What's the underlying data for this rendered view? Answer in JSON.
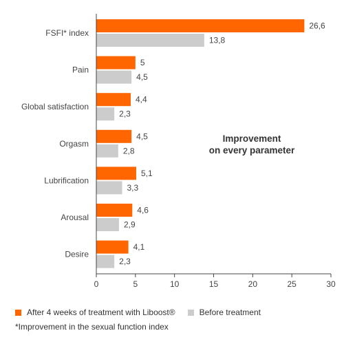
{
  "chart_data": {
    "type": "bar",
    "orientation": "horizontal",
    "categories": [
      "FSFI* index",
      "Pain",
      "Global satisfaction",
      "Orgasm",
      "Lubrification",
      "Arousal",
      "Desire"
    ],
    "series": [
      {
        "name": "After 4 weeks of treatment with Liboost®",
        "values": [
          26.6,
          5,
          4.4,
          4.5,
          5.1,
          4.6,
          4.1
        ],
        "value_labels": [
          "26,6",
          "5",
          "4,4",
          "4,5",
          "5,1",
          "4,6",
          "4,1"
        ],
        "color": "#ff6600"
      },
      {
        "name": "Before treatment",
        "values": [
          13.8,
          4.5,
          2.3,
          2.8,
          3.3,
          2.9,
          2.3
        ],
        "value_labels": [
          "13,8",
          "4,5",
          "2,3",
          "2,8",
          "3,3",
          "2,9",
          "2,3"
        ],
        "color": "#cccccc"
      }
    ],
    "xlim": [
      0,
      30
    ],
    "xticks": [
      0,
      5,
      10,
      15,
      20,
      25,
      30
    ],
    "grid": false,
    "legend_position": "bottom-left",
    "annotation": [
      "Improvement",
      "on every parameter"
    ],
    "footnote": "*Improvement in the sexual function index"
  }
}
